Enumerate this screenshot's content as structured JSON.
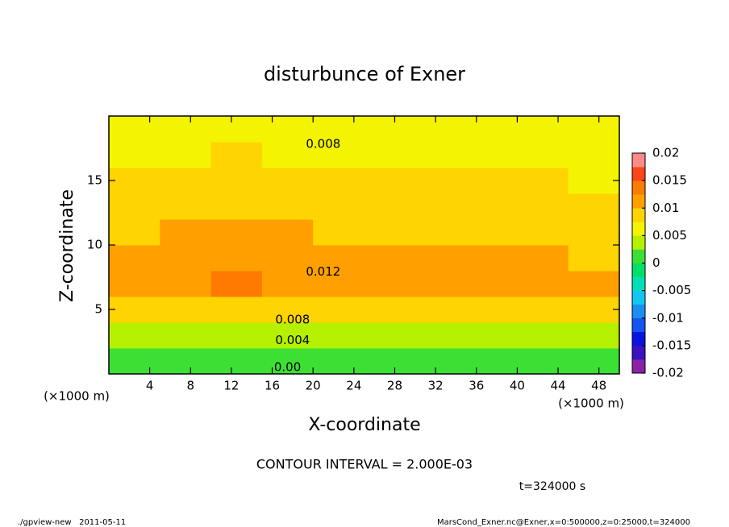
{
  "chart_data": {
    "type": "heatmap",
    "title": "disturbunce of Exner",
    "xlabel": "X-coordinate",
    "ylabel": "Z-coordinate",
    "x_units": "(×1000 m)",
    "xlim": [
      0,
      50
    ],
    "ylim": [
      0,
      20
    ],
    "xticks": [
      4,
      8,
      12,
      16,
      20,
      24,
      28,
      32,
      36,
      40,
      44,
      48
    ],
    "yticks": [
      5,
      10,
      15
    ],
    "x": [
      2.5,
      7.5,
      12.5,
      17.5,
      22.5,
      27.5,
      32.5,
      37.5,
      42.5,
      47.5
    ],
    "z": [
      1,
      3,
      5,
      7,
      9,
      11,
      13,
      15,
      17,
      19
    ],
    "values": [
      [
        0.001,
        0.0008,
        0.0006,
        0.0008,
        0.001,
        0.0015,
        0.001,
        0.0008,
        0.0008,
        0.0012
      ],
      [
        0.004,
        0.0035,
        0.0032,
        0.0035,
        0.0038,
        0.0045,
        0.0038,
        0.0035,
        0.0035,
        0.004
      ],
      [
        0.0085,
        0.008,
        0.0078,
        0.008,
        0.0085,
        0.009,
        0.0085,
        0.008,
        0.008,
        0.0085
      ],
      [
        0.011,
        0.0122,
        0.0125,
        0.0124,
        0.0115,
        0.0112,
        0.0122,
        0.0118,
        0.011,
        0.0105
      ],
      [
        0.0105,
        0.0115,
        0.0118,
        0.0116,
        0.011,
        0.0105,
        0.011,
        0.0108,
        0.0102,
        0.0098
      ],
      [
        0.0095,
        0.0102,
        0.0105,
        0.0102,
        0.0098,
        0.0095,
        0.0096,
        0.0095,
        0.0092,
        0.009
      ],
      [
        0.0085,
        0.0092,
        0.0095,
        0.0092,
        0.0088,
        0.0086,
        0.0087,
        0.0086,
        0.0084,
        0.0082
      ],
      [
        0.0075,
        0.0082,
        0.0085,
        0.0082,
        0.008,
        0.0078,
        0.0079,
        0.0078,
        0.0076,
        0.0074
      ],
      [
        0.0065,
        0.0072,
        0.0075,
        0.0074,
        0.007,
        0.007,
        0.007,
        0.0068,
        0.0066,
        0.0064
      ],
      [
        0.0055,
        0.006,
        0.0062,
        0.0062,
        0.0058,
        0.0058,
        0.0058,
        0.0057,
        0.0056,
        0.0055
      ]
    ],
    "colorbar": {
      "levels": [
        -0.02,
        -0.0175,
        -0.015,
        -0.0125,
        -0.01,
        -0.0075,
        -0.005,
        -0.0025,
        0,
        0.0025,
        0.005,
        0.0075,
        0.01,
        0.0125,
        0.015,
        0.0175,
        0.02
      ],
      "colors": [
        "#8a22a8",
        "#3a12c0",
        "#0a14e0",
        "#1454f0",
        "#1c8ef0",
        "#12c6f0",
        "#00e0b4",
        "#00e068",
        "#3ce034",
        "#b4f000",
        "#f4f400",
        "#ffd400",
        "#ffa000",
        "#ff7a00",
        "#ff4418",
        "#ff8a8a"
      ],
      "ticks": [
        -0.02,
        -0.015,
        -0.01,
        -0.005,
        0,
        0.005,
        0.01,
        0.015,
        0.02
      ]
    },
    "contour_labels": [
      {
        "value": 0.008,
        "label": "0.008",
        "x": 21,
        "z": 17.8
      },
      {
        "value": 0.012,
        "label": "0.012",
        "x": 21,
        "z": 7.9
      },
      {
        "value": 0.008,
        "label": "0.008",
        "x": 18,
        "z": 4.2
      },
      {
        "value": 0.004,
        "label": "0.004",
        "x": 18,
        "z": 2.6
      },
      {
        "value": 0,
        "label": "0.00",
        "x": 17.5,
        "z": 0.5
      }
    ],
    "contour_interval": "CONTOUR INTERVAL = 2.000E-03",
    "time": "t=324000 s",
    "footer_left": "./gpview-new   2011-05-11",
    "footer_right": "MarsCond_Exner.nc@Exner,x=0:500000,z=0:25000,t=324000"
  }
}
